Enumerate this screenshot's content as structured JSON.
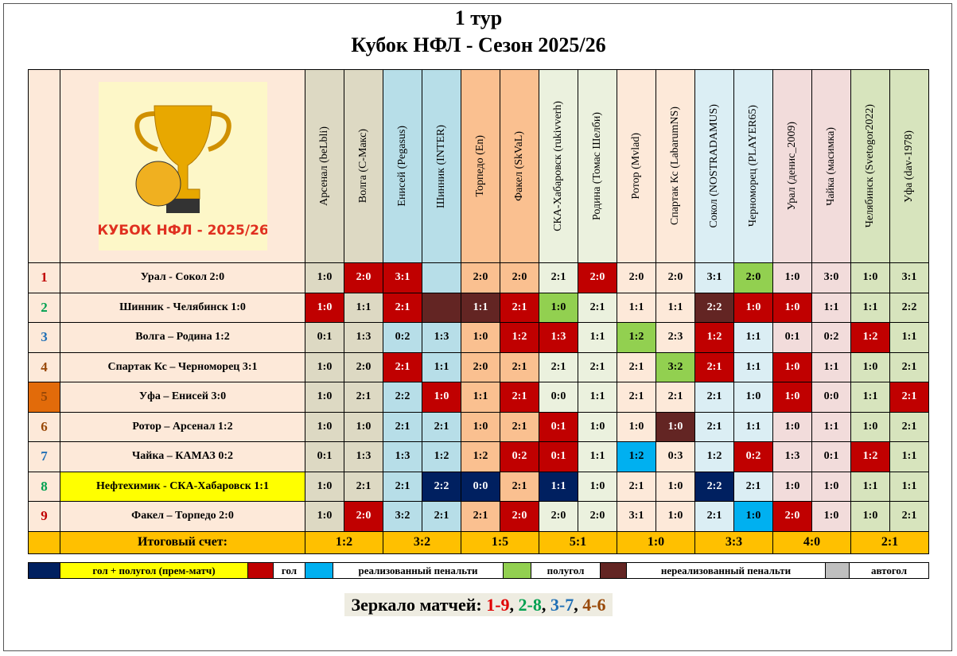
{
  "header": {
    "title": "1 тур",
    "subtitle": "Кубок НФЛ - Сезон 2025/26",
    "logo_text": "КУБОК НФЛ - 2025/26"
  },
  "table": {
    "columns": [
      "Арсенал (beLbli)",
      "Волга (С-Макс)",
      "Енисей (Pegasus)",
      "Шинник (INTER)",
      "Торпедо (En)",
      "Факел (SkVaL)",
      "СКА-Хабаровск (rukivverh)",
      "Родина (Томас Шелби)",
      "Ротор (Mvlad)",
      "Спартак Кс  (LabarumNS)",
      "Сокол (NOSTRADAMUS)",
      "Черноморец (PLAYER65)",
      "Урал (денис_2009)",
      "Чайка (масимка)",
      "Челябинск (Svetogor2022)",
      "Уфа (dav-1978)"
    ],
    "rows": [
      {
        "num": "1",
        "match": "Урал - Сокол  2:0",
        "scores": [
          "1:0",
          "2:0",
          "3:1",
          null,
          "2:0",
          "2:0",
          "2:1",
          "2:0",
          "2:0",
          "2:0",
          "3:1",
          "2:0",
          "1:0",
          "3:0",
          "1:0",
          "3:1"
        ]
      },
      {
        "num": "2",
        "match": "Шинник - Челябинск  1:0",
        "scores": [
          "1:0",
          "1:1",
          "2:1",
          null,
          "1:1",
          "2:1",
          "1:0",
          "2:1",
          "1:1",
          "1:1",
          "2:2",
          "1:0",
          "1:0",
          "1:1",
          "1:1",
          "2:2"
        ]
      },
      {
        "num": "3",
        "match": "Волга – Родина  1:2",
        "scores": [
          "0:1",
          "1:3",
          "0:2",
          "1:3",
          "1:0",
          "1:2",
          "1:3",
          "1:1",
          "1:2",
          "2:3",
          "1:2",
          "1:1",
          "0:1",
          "0:2",
          "1:2",
          "1:1"
        ]
      },
      {
        "num": "4",
        "match": "Спартак Кс – Черноморец  3:1",
        "scores": [
          "1:0",
          "2:0",
          "2:1",
          "1:1",
          "2:0",
          "2:1",
          "2:1",
          "2:1",
          "2:1",
          "3:2",
          "2:1",
          "1:1",
          "1:0",
          "1:1",
          "1:0",
          "2:1"
        ]
      },
      {
        "num": "5",
        "match": "Уфа – Енисей  3:0",
        "scores": [
          "1:0",
          "2:1",
          "2:2",
          "1:0",
          "1:1",
          "2:1",
          "0:0",
          "1:1",
          "2:1",
          "2:1",
          "2:1",
          "1:0",
          "1:0",
          "0:0",
          "1:1",
          "2:1"
        ]
      },
      {
        "num": "6",
        "match": "Ротор – Арсенал  1:2",
        "scores": [
          "1:0",
          "1:0",
          "2:1",
          "2:1",
          "1:0",
          "2:1",
          "0:1",
          "1:0",
          "1:0",
          "1:0",
          "2:1",
          "1:1",
          "1:0",
          "1:1",
          "1:0",
          "2:1"
        ]
      },
      {
        "num": "7",
        "match": "Чайка – КАМАЗ  0:2",
        "scores": [
          "0:1",
          "1:3",
          "1:3",
          "1:2",
          "1:2",
          "0:2",
          "0:1",
          "1:1",
          "1:2",
          "0:3",
          "1:2",
          "0:2",
          "1:3",
          "0:1",
          "1:2",
          "1:1"
        ]
      },
      {
        "num": "8",
        "match": "Нефтехимик - СКА-Хабаровск  1:1",
        "scores": [
          "1:0",
          "2:1",
          "2:1",
          "2:2",
          "0:0",
          "2:1",
          "1:1",
          "1:0",
          "2:1",
          "1:0",
          "2:2",
          "2:1",
          "1:0",
          "1:0",
          "1:1",
          "1:1"
        ]
      },
      {
        "num": "9",
        "match": "Факел – Торпедо  2:0",
        "scores": [
          "1:0",
          "2:0",
          "3:2",
          "2:1",
          "2:1",
          "2:0",
          "2:0",
          "2:0",
          "3:1",
          "1:0",
          "2:1",
          "1:0",
          "2:0",
          "1:0",
          "1:0",
          "2:1"
        ]
      }
    ],
    "totals": {
      "label": "Итоговый счет:",
      "values": [
        "1:2",
        "3:2",
        "1:5",
        "5:1",
        "1:0",
        "3:3",
        "4:0",
        "2:1"
      ]
    }
  },
  "legend": [
    "гол + полугол  (прем-матч)",
    "гол",
    "реализованный  пенальти",
    "полугол",
    "нереализованный  пенальти",
    "автогол"
  ],
  "mirror": {
    "label": "Зеркало матчей: ",
    "pairs": [
      "1-9",
      "2-8",
      "3-7",
      "4-6"
    ],
    "separator": ","
  }
}
